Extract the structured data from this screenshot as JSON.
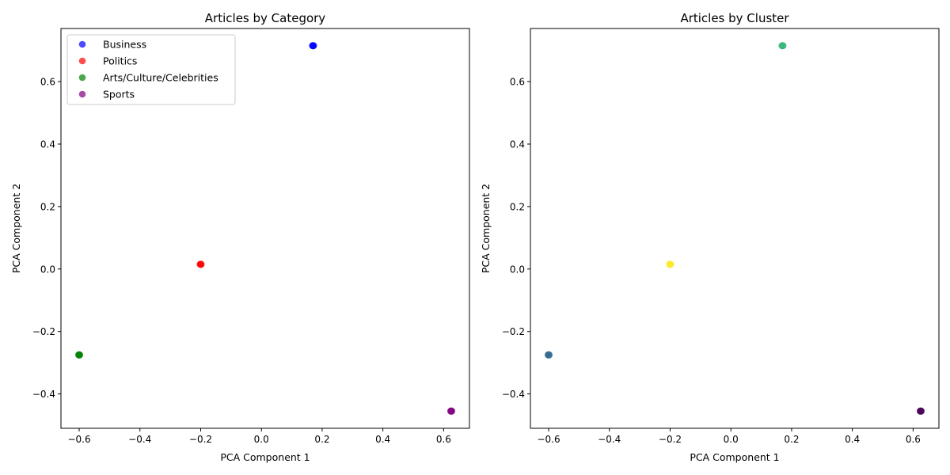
{
  "chart_data": [
    {
      "type": "scatter",
      "title": "Articles by Category",
      "xlabel": "PCA Component 1",
      "ylabel": "PCA Component 2",
      "xlim": [
        -0.66,
        0.685
      ],
      "ylim": [
        -0.51,
        0.77
      ],
      "xticks": [
        -0.6,
        -0.4,
        -0.2,
        0.0,
        0.2,
        0.4,
        0.6
      ],
      "xtick_labels": [
        "−0.6",
        "−0.4",
        "−0.2",
        "0.0",
        "0.2",
        "0.4",
        "0.6"
      ],
      "yticks": [
        -0.4,
        -0.2,
        0.0,
        0.2,
        0.4,
        0.6
      ],
      "ytick_labels": [
        "−0.4",
        "−0.2",
        "0.0",
        "0.2",
        "0.4",
        "0.6"
      ],
      "grid": false,
      "legend": "top-left",
      "series": [
        {
          "name": "Business",
          "color": "#0000ff",
          "x": [
            0.17
          ],
          "y": [
            0.715
          ]
        },
        {
          "name": "Politics",
          "color": "#ff0000",
          "x": [
            -0.2
          ],
          "y": [
            0.015
          ]
        },
        {
          "name": "Arts/Culture/Celebrities",
          "color": "#008000",
          "x": [
            -0.6
          ],
          "y": [
            -0.275
          ]
        },
        {
          "name": "Sports",
          "color": "#800080",
          "x": [
            0.625
          ],
          "y": [
            -0.455
          ]
        }
      ]
    },
    {
      "type": "scatter",
      "title": "Articles by Cluster",
      "xlabel": "PCA Component 1",
      "ylabel": "PCA Component 2",
      "xlim": [
        -0.66,
        0.685
      ],
      "ylim": [
        -0.51,
        0.77
      ],
      "xticks": [
        -0.6,
        -0.4,
        -0.2,
        0.0,
        0.2,
        0.4,
        0.6
      ],
      "xtick_labels": [
        "−0.6",
        "−0.4",
        "−0.2",
        "0.0",
        "0.2",
        "0.4",
        "0.6"
      ],
      "yticks": [
        -0.4,
        -0.2,
        0.0,
        0.2,
        0.4,
        0.6
      ],
      "ytick_labels": [
        "−0.4",
        "−0.2",
        "0.0",
        "0.2",
        "0.4",
        "0.6"
      ],
      "grid": false,
      "legend": "none",
      "series": [
        {
          "color": "#35b779",
          "x": [
            0.17
          ],
          "y": [
            0.715
          ]
        },
        {
          "color": "#fde725",
          "x": [
            -0.2
          ],
          "y": [
            0.015
          ]
        },
        {
          "color": "#31688e",
          "x": [
            -0.6
          ],
          "y": [
            -0.275
          ]
        },
        {
          "color": "#440154",
          "x": [
            0.625
          ],
          "y": [
            -0.455
          ]
        }
      ]
    }
  ]
}
